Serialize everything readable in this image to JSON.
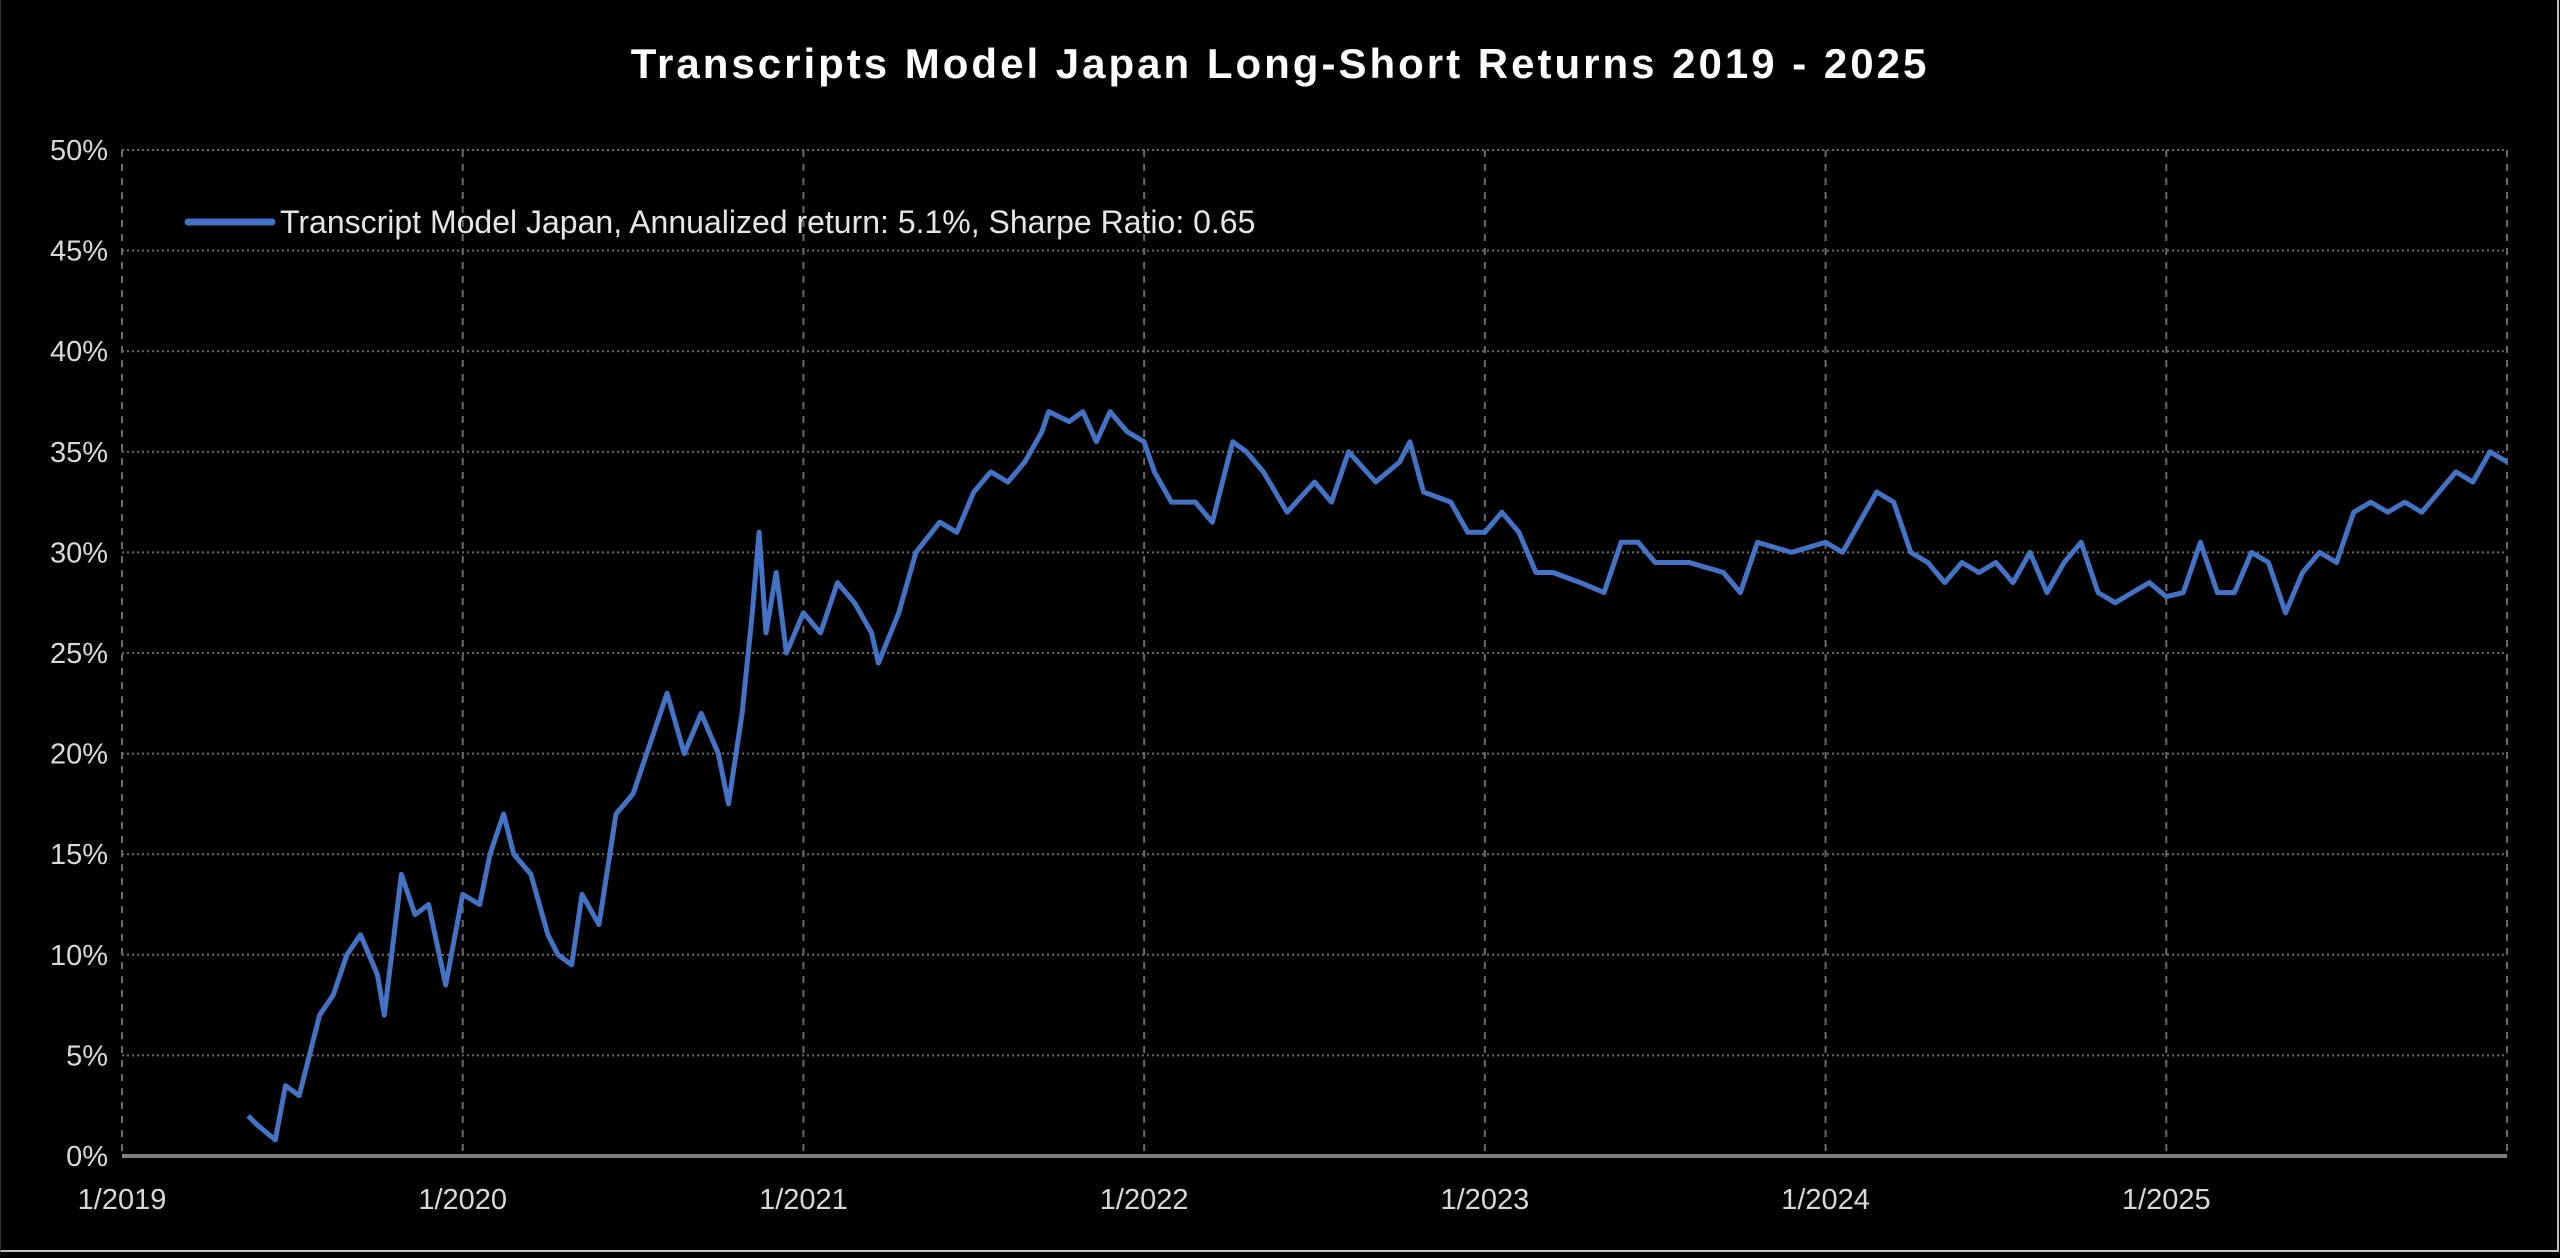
{
  "chart_data": {
    "type": "line",
    "title": "Transcripts Model Japan Long-Short Returns 2019 - 2025",
    "xlabel": "",
    "ylabel": "",
    "xlim": [
      2019.0,
      2026.0
    ],
    "ylim": [
      0,
      50
    ],
    "grid": true,
    "legend_position": "top-left",
    "x_tick_labels": [
      "1/2019",
      "1/2020",
      "1/2021",
      "1/2022",
      "1/2023",
      "1/2024",
      "1/2025"
    ],
    "x_tick_values": [
      2019,
      2020,
      2021,
      2022,
      2023,
      2024,
      2025
    ],
    "y_tick_labels": [
      "0%",
      "5%",
      "10%",
      "15%",
      "20%",
      "25%",
      "30%",
      "35%",
      "40%",
      "45%",
      "50%"
    ],
    "y_tick_values": [
      0,
      5,
      10,
      15,
      20,
      25,
      30,
      35,
      40,
      45,
      50
    ],
    "series": [
      {
        "name": "Transcript Model Japan, Annualized return: 5.1%, Sharpe Ratio: 0.65",
        "color": "#4472c4",
        "x": [
          2019.37,
          2019.4,
          2019.45,
          2019.48,
          2019.52,
          2019.58,
          2019.62,
          2019.66,
          2019.7,
          2019.75,
          2019.77,
          2019.82,
          2019.86,
          2019.9,
          2019.95,
          2020.0,
          2020.05,
          2020.08,
          2020.12,
          2020.15,
          2020.2,
          2020.25,
          2020.28,
          2020.32,
          2020.35,
          2020.4,
          2020.45,
          2020.5,
          2020.55,
          2020.6,
          2020.65,
          2020.7,
          2020.75,
          2020.78,
          2020.82,
          2020.85,
          2020.87,
          2020.89,
          2020.92,
          2020.95,
          2021.0,
          2021.05,
          2021.1,
          2021.15,
          2021.2,
          2021.22,
          2021.28,
          2021.33,
          2021.4,
          2021.45,
          2021.5,
          2021.55,
          2021.6,
          2021.65,
          2021.7,
          2021.72,
          2021.78,
          2021.82,
          2021.86,
          2021.9,
          2021.95,
          2022.0,
          2022.03,
          2022.08,
          2022.15,
          2022.2,
          2022.26,
          2022.3,
          2022.35,
          2022.42,
          2022.5,
          2022.55,
          2022.6,
          2022.68,
          2022.75,
          2022.78,
          2022.82,
          2022.9,
          2022.95,
          2023.0,
          2023.05,
          2023.1,
          2023.15,
          2023.2,
          2023.28,
          2023.35,
          2023.4,
          2023.45,
          2023.5,
          2023.6,
          2023.7,
          2023.75,
          2023.8,
          2023.9,
          2024.0,
          2024.05,
          2024.1,
          2024.15,
          2024.2,
          2024.25,
          2024.3,
          2024.35,
          2024.4,
          2024.45,
          2024.5,
          2024.55,
          2024.6,
          2024.65,
          2024.7,
          2024.75,
          2024.8,
          2024.85,
          2024.9,
          2024.95,
          2025.0,
          2025.05,
          2025.1,
          2025.15,
          2025.2,
          2025.25,
          2025.3,
          2025.35,
          2025.4,
          2025.45,
          2025.5,
          2025.55,
          2025.6,
          2025.65,
          2025.7,
          2025.75,
          2025.8,
          2025.85,
          2025.9,
          2025.95,
          2026.0
        ],
        "y": [
          2,
          1.5,
          0.8,
          3.5,
          3,
          7,
          8,
          10,
          11,
          9,
          7,
          14,
          12,
          12.5,
          8.5,
          13,
          12.5,
          15,
          17,
          15,
          14,
          11,
          10,
          9.5,
          13,
          11.5,
          17,
          18,
          20.5,
          23,
          20,
          22,
          20,
          17.5,
          22,
          27,
          31,
          26,
          29,
          25,
          27,
          26,
          28.5,
          27.5,
          26,
          24.5,
          27,
          30,
          31.5,
          31,
          33,
          34,
          33.5,
          34.5,
          36,
          37,
          36.5,
          37,
          35.5,
          37,
          36,
          35.5,
          34,
          32.5,
          32.5,
          31.5,
          35.5,
          35,
          34,
          32,
          33.5,
          32.5,
          35,
          33.5,
          34.5,
          35.5,
          33,
          32.5,
          31,
          31,
          32,
          31,
          29,
          29,
          28.5,
          28,
          30.5,
          30.5,
          29.5,
          29.5,
          29,
          28,
          30.5,
          30,
          30.5,
          30,
          31.5,
          33,
          32.5,
          30,
          29.5,
          28.5,
          29.5,
          29,
          29.5,
          28.5,
          30,
          28,
          29.5,
          30.5,
          28,
          27.5,
          28,
          28.5,
          27.8,
          28,
          30.5,
          28,
          28,
          30,
          29.5,
          27,
          29,
          30,
          29.5,
          32,
          32.5,
          32,
          32.5,
          32,
          33,
          34,
          33.5,
          35,
          34.5
        ]
      }
    ]
  }
}
